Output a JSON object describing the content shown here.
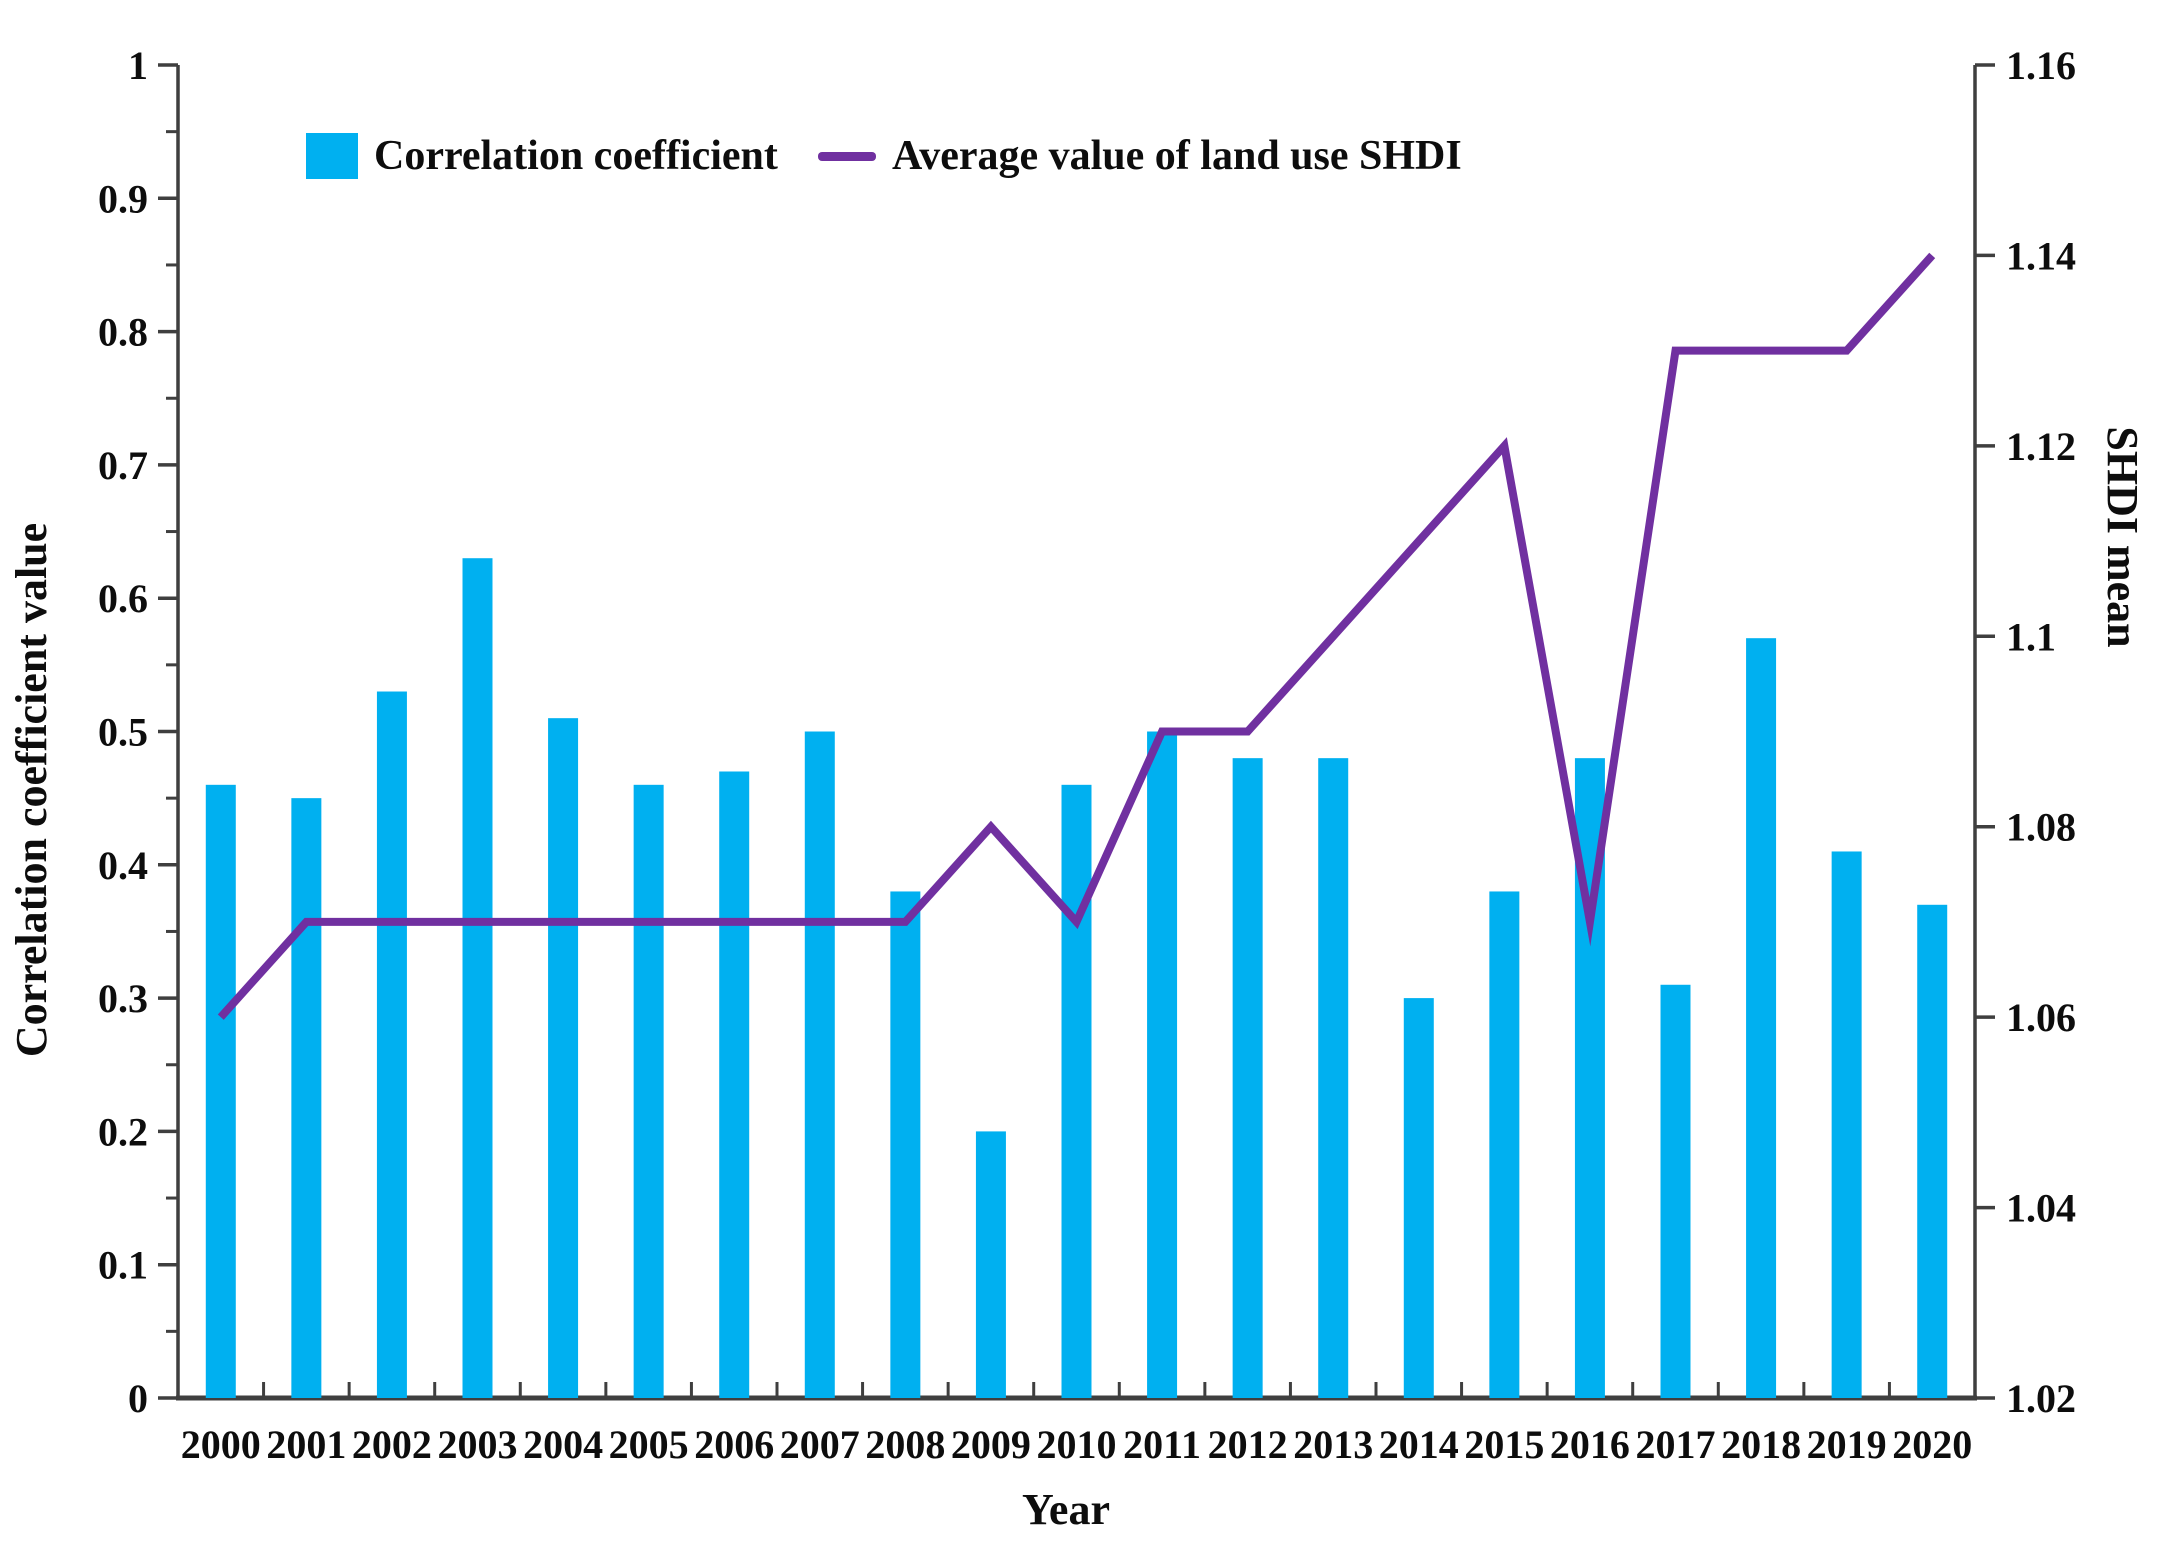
{
  "chart_data": {
    "type": "bar+line",
    "categories": [
      "2000",
      "2001",
      "2002",
      "2003",
      "2004",
      "2005",
      "2006",
      "2007",
      "2008",
      "2009",
      "2010",
      "2011",
      "2012",
      "2013",
      "2014",
      "2015",
      "2016",
      "2017",
      "2018",
      "2019",
      "2020"
    ],
    "series": [
      {
        "name": "Correlation coefficient",
        "type": "bar",
        "y_axis": "left",
        "color": "#00B0F0",
        "values": [
          0.46,
          0.45,
          0.53,
          0.63,
          0.51,
          0.46,
          0.47,
          0.5,
          0.38,
          0.2,
          0.46,
          0.5,
          0.48,
          0.48,
          0.3,
          0.38,
          0.48,
          0.31,
          0.57,
          0.41,
          0.37
        ]
      },
      {
        "name": "Average value of land use SHDI",
        "type": "line",
        "y_axis": "right",
        "color": "#7030A0",
        "values": [
          1.06,
          1.07,
          1.07,
          1.07,
          1.07,
          1.07,
          1.07,
          1.07,
          1.07,
          1.08,
          1.07,
          1.09,
          1.09,
          1.1,
          1.11,
          1.12,
          1.07,
          1.13,
          1.13,
          1.13,
          1.14
        ]
      }
    ],
    "x_axis": {
      "label": "Year"
    },
    "left_axis": {
      "label": "Correlation coefficient value",
      "min": 0,
      "max": 1,
      "major_step": 0.1,
      "minor_step": 0.05,
      "tick_labels": [
        "0",
        "0.1",
        "0.2",
        "0.3",
        "0.4",
        "0.5",
        "0.6",
        "0.7",
        "0.8",
        "0.9",
        "1"
      ]
    },
    "right_axis": {
      "label": "SHDI mean",
      "min": 1.02,
      "max": 1.16,
      "major_step": 0.02,
      "tick_labels": [
        "1.02",
        "1.04",
        "1.06",
        "1.08",
        "1.1",
        "1.12",
        "1.14",
        "1.16"
      ]
    },
    "grid": false,
    "legend_position": "top-left-inside",
    "axis_color": "#3f3f3f"
  }
}
